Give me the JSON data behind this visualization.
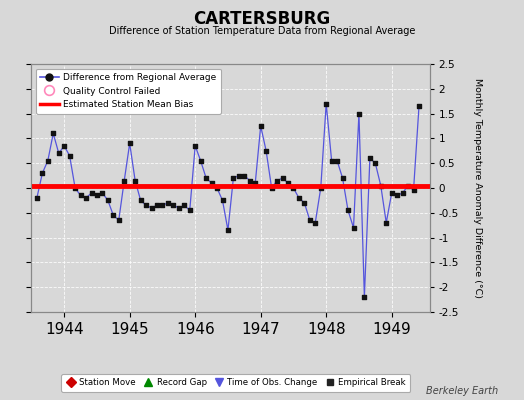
{
  "title": "CARTERSBURG",
  "subtitle": "Difference of Station Temperature Data from Regional Average",
  "ylabel": "Monthly Temperature Anomaly Difference (°C)",
  "background_color": "#d8d8d8",
  "plot_bg_color": "#d8d8d8",
  "xlim": [
    1943.5,
    1949.58
  ],
  "ylim": [
    -2.5,
    2.5
  ],
  "yticks": [
    -2.5,
    -2,
    -1.5,
    -1,
    -0.5,
    0,
    0.5,
    1,
    1.5,
    2,
    2.5
  ],
  "xticks": [
    1944,
    1945,
    1946,
    1947,
    1948,
    1949
  ],
  "bias_y": 0.05,
  "bias_color": "#ff0000",
  "line_color": "#5555dd",
  "marker_color": "#111111",
  "watermark": "Berkeley Earth",
  "x_values": [
    1943.583,
    1943.667,
    1943.75,
    1943.833,
    1943.917,
    1944.0,
    1944.083,
    1944.167,
    1944.25,
    1944.333,
    1944.417,
    1944.5,
    1944.583,
    1944.667,
    1944.75,
    1944.833,
    1944.917,
    1945.0,
    1945.083,
    1945.167,
    1945.25,
    1945.333,
    1945.417,
    1945.5,
    1945.583,
    1945.667,
    1945.75,
    1945.833,
    1945.917,
    1946.0,
    1946.083,
    1946.167,
    1946.25,
    1946.333,
    1946.417,
    1946.5,
    1946.583,
    1946.667,
    1946.75,
    1946.833,
    1946.917,
    1947.0,
    1947.083,
    1947.167,
    1947.25,
    1947.333,
    1947.417,
    1947.5,
    1947.583,
    1947.667,
    1947.75,
    1947.833,
    1947.917,
    1948.0,
    1948.083,
    1948.167,
    1948.25,
    1948.333,
    1948.417,
    1948.5,
    1948.583,
    1948.667,
    1948.75,
    1948.833,
    1948.917,
    1949.0,
    1949.083,
    1949.167,
    1949.25,
    1949.333,
    1949.417
  ],
  "y_values": [
    -0.2,
    0.3,
    0.55,
    1.1,
    0.7,
    0.85,
    0.65,
    0.0,
    -0.15,
    -0.2,
    -0.1,
    -0.15,
    -0.1,
    -0.25,
    -0.55,
    -0.65,
    0.15,
    0.9,
    0.15,
    -0.25,
    -0.35,
    -0.4,
    -0.35,
    -0.35,
    -0.3,
    -0.35,
    -0.4,
    -0.35,
    -0.45,
    0.85,
    0.55,
    0.2,
    0.1,
    0.0,
    -0.25,
    -0.85,
    0.2,
    0.25,
    0.25,
    0.15,
    0.1,
    1.25,
    0.75,
    0.0,
    0.15,
    0.2,
    0.1,
    0.0,
    -0.2,
    -0.3,
    -0.65,
    -0.7,
    0.0,
    1.7,
    0.55,
    0.55,
    0.2,
    -0.45,
    -0.8,
    1.5,
    -2.2,
    0.6,
    0.5,
    0.05,
    -0.7,
    -0.1,
    -0.15,
    -0.1,
    0.05,
    -0.05,
    1.65
  ],
  "figsize": [
    5.24,
    4.0
  ],
  "dpi": 100
}
